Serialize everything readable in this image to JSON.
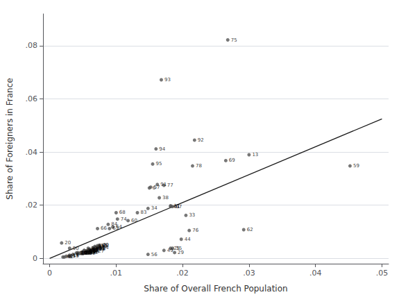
{
  "chart_data": {
    "type": "scatter",
    "xlabel": "Share of Overall French Population",
    "ylabel": "Share of Foreigners in France",
    "xlim": [
      -0.001,
      0.051
    ],
    "ylim": [
      -0.002,
      0.092
    ],
    "xticks": [
      0,
      {
        "value": 0.01,
        "label": ".01"
      },
      {
        "value": 0.02,
        "label": ".02"
      },
      {
        "value": 0.03,
        "label": ".03"
      },
      {
        "value": 0.04,
        "label": ".04"
      },
      {
        "value": 0.05,
        "label": ".05"
      }
    ],
    "yticks": [
      0,
      {
        "value": 0.02,
        "label": ".02"
      },
      {
        "value": 0.04,
        "label": ".04"
      },
      {
        "value": 0.06,
        "label": ".06"
      },
      {
        "value": 0.08,
        "label": ".08"
      }
    ],
    "grid": "y",
    "series": [
      {
        "type": "scatter",
        "color": "#555555",
        "labels": [
          "1",
          "2",
          "3",
          "4",
          "5",
          "6",
          "7",
          "8",
          "9",
          "10",
          "11",
          "12",
          "13",
          "14",
          "15",
          "16",
          "17",
          "18",
          "19",
          "20",
          "21",
          "22",
          "23",
          "24",
          "25",
          "26",
          "27",
          "28",
          "29",
          "30",
          "31",
          "32",
          "33",
          "34",
          "35",
          "36",
          "37",
          "38",
          "39",
          "40",
          "41",
          "42",
          "43",
          "44",
          "45",
          "46",
          "47",
          "48",
          "49",
          "50",
          "51",
          "52",
          "53",
          "54",
          "55",
          "56",
          "57",
          "58",
          "59",
          "60",
          "61",
          "62",
          "63",
          "64",
          "65",
          "66",
          "67",
          "68",
          "69",
          "70",
          "71",
          "72",
          "73",
          "74",
          "75",
          "76",
          "77",
          "78",
          "79",
          "80",
          "81",
          "82",
          "83",
          "84",
          "85",
          "86",
          "87",
          "88",
          "89",
          "90",
          "91",
          "92",
          "93",
          "94",
          "95"
        ],
        "x": [
          0.0052,
          0.0035,
          0.004,
          0.006,
          0.005,
          0.015,
          0.0048,
          0.0045,
          0.0055,
          0.006,
          0.007,
          0.0058,
          0.03,
          0.0068,
          0.003,
          0.0055,
          0.006,
          0.0058,
          0.0042,
          0.0018,
          0.006,
          0.0055,
          0.0048,
          0.0058,
          0.0182,
          0.007,
          0.0068,
          0.0058,
          0.0188,
          0.0072,
          0.0182,
          0.0048,
          0.0205,
          0.0148,
          0.0185,
          0.005,
          0.0058,
          0.0165,
          0.0055,
          0.0055,
          0.005,
          0.0022,
          0.0025,
          0.0198,
          0.0065,
          0.0042,
          0.0052,
          0.002,
          0.0172,
          0.006,
          0.007,
          0.0058,
          0.003,
          0.0075,
          0.005,
          0.0148,
          0.0152,
          0.0048,
          0.0452,
          0.0118,
          0.0182,
          0.0292,
          0.009,
          0.0095,
          0.006,
          0.0072,
          0.0185,
          0.01,
          0.0265,
          0.0075,
          0.0068,
          0.0065,
          0.0072,
          0.0102,
          0.0268,
          0.021,
          0.0172,
          0.0215,
          0.0042,
          0.0068,
          0.0055,
          0.0045,
          0.0132,
          0.0088,
          0.006,
          0.0055,
          0.0068,
          0.0075,
          0.0052,
          0.003,
          0.0162,
          0.0218,
          0.0168,
          0.016,
          0.0155
        ],
        "values": [
          0.003,
          0.0015,
          0.002,
          0.0025,
          0.0018,
          0.0265,
          0.0022,
          0.0018,
          0.0028,
          0.003,
          0.004,
          0.0038,
          0.039,
          0.0045,
          0.0012,
          0.0028,
          0.003,
          0.003,
          0.0018,
          0.0058,
          0.0032,
          0.002,
          0.0018,
          0.0025,
          0.0038,
          0.0035,
          0.0028,
          0.0022,
          0.0022,
          0.0045,
          0.0198,
          0.002,
          0.0162,
          0.0188,
          0.0038,
          0.0018,
          0.0032,
          0.0228,
          0.0025,
          0.0022,
          0.0022,
          0.0005,
          0.0008,
          0.0072,
          0.004,
          0.0018,
          0.0022,
          0.0005,
          0.003,
          0.0025,
          0.0038,
          0.003,
          0.0008,
          0.004,
          0.0025,
          0.0015,
          0.0268,
          0.0022,
          0.0348,
          0.0142,
          0.0195,
          0.0108,
          0.0112,
          0.0118,
          0.0035,
          0.0112,
          0.0195,
          0.0172,
          0.0368,
          0.005,
          0.004,
          0.0035,
          0.0048,
          0.0148,
          0.0822,
          0.0105,
          0.0275,
          0.0348,
          0.0022,
          0.0035,
          0.0025,
          0.002,
          0.0172,
          0.0128,
          0.003,
          0.0028,
          0.0042,
          0.0048,
          0.003,
          0.0038,
          0.0278,
          0.0445,
          0.0672,
          0.0412,
          0.0355
        ]
      },
      {
        "type": "line",
        "color": "#1a1a1a",
        "x": [
          0.0,
          0.05
        ],
        "values": [
          0.0,
          0.0525
        ]
      }
    ]
  }
}
